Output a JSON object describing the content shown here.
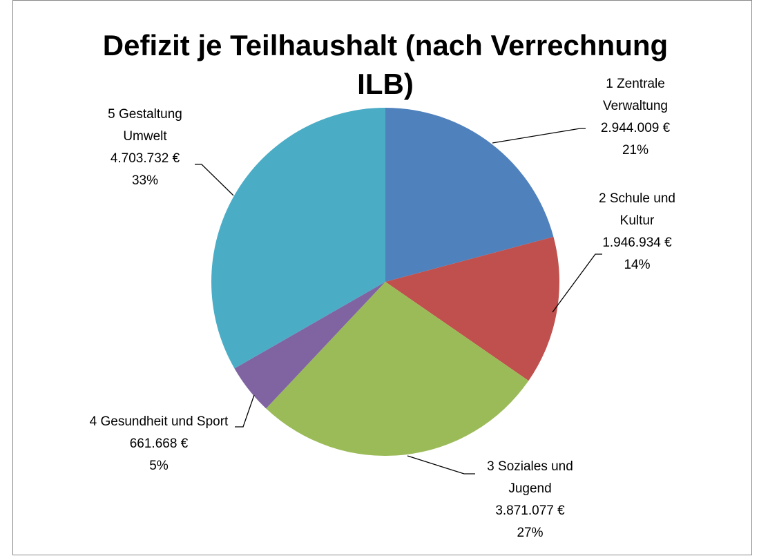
{
  "chart_data": {
    "type": "pie",
    "title": "Defizit je Teilhaushalt (nach Verrechnung ILB)",
    "categories": [
      "1 Zentrale Verwaltung",
      "2 Schule und Kultur",
      "3 Soziales und Jugend",
      "4 Gesundheit und Sport",
      "5 Gestaltung Umwelt"
    ],
    "values": [
      2944009,
      1946934,
      3871077,
      661668,
      4703732
    ],
    "value_labels": [
      "2.944.009 €",
      "1.946.934 €",
      "3.871.077 €",
      "661.668 €",
      "4.703.732 €"
    ],
    "percent_labels": [
      "21%",
      "14%",
      "27%",
      "5%",
      "33%"
    ],
    "colors": [
      "#4f81bd",
      "#c0504d",
      "#9bbb59",
      "#8064a2",
      "#4bacc6"
    ]
  }
}
